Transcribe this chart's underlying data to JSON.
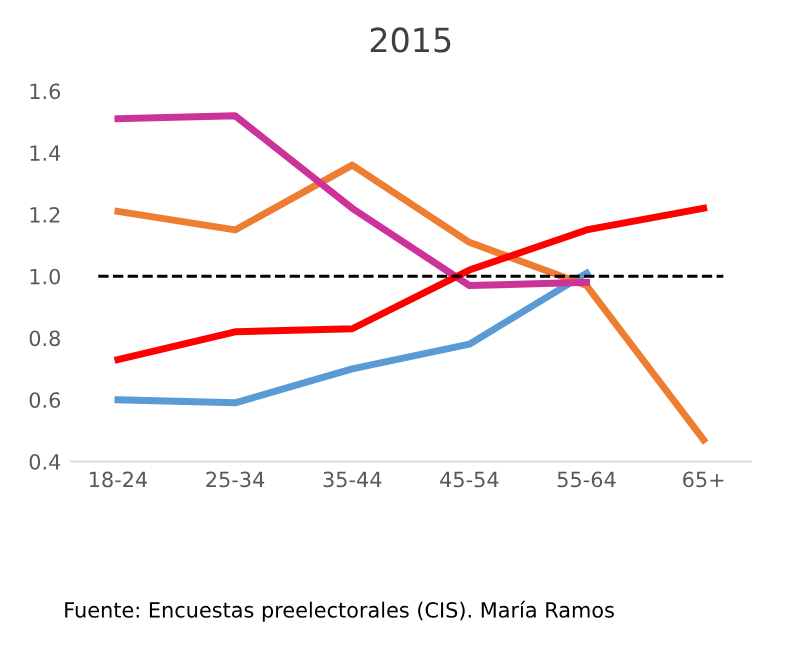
{
  "chart_data": {
    "type": "line",
    "title": "2015",
    "categories": [
      "18-24",
      "25-34",
      "35-44",
      "45-54",
      "55-64",
      "65+"
    ],
    "series": [
      {
        "color": "#5b9bd5",
        "values": [
          0.6,
          0.59,
          0.7,
          0.78,
          1.01,
          null
        ]
      },
      {
        "color": "#ed7d31",
        "values": [
          1.21,
          1.15,
          1.36,
          1.11,
          0.97,
          0.47
        ]
      },
      {
        "color": "#cc3399",
        "values": [
          1.51,
          1.52,
          1.22,
          0.97,
          0.98,
          null
        ]
      },
      {
        "color": "#ff0000",
        "values": [
          0.73,
          0.82,
          0.83,
          1.02,
          1.15,
          1.22
        ]
      }
    ],
    "ylim": [
      0.4,
      1.6
    ],
    "yticks": [
      {
        "value": 0.4,
        "label": "0.4"
      },
      {
        "value": 0.6,
        "label": "0.6"
      },
      {
        "value": 0.8,
        "label": "0.8"
      },
      {
        "value": 1.0,
        "label": "1.0"
      },
      {
        "value": 1.2,
        "label": "1.2"
      },
      {
        "value": 1.4,
        "label": "1.4"
      },
      {
        "value": 1.6,
        "label": "1.6"
      }
    ],
    "ref_lines": [
      {
        "axis": "y",
        "value": 1.0,
        "color": "#000000",
        "line_style": "dashed"
      }
    ],
    "annotations": [
      "Fuente: Encuestas preelectorales (CIS). María Ramos"
    ],
    "grid": false,
    "legend": false,
    "marker": "none",
    "line_style": "solid"
  }
}
